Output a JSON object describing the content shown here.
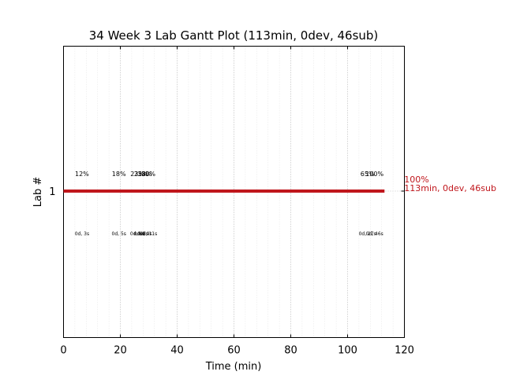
{
  "chart_data": {
    "type": "gantt",
    "title": "34 Week 3 Lab Gantt Plot (113min, 0dev, 46sub)",
    "xlabel": "Time (min)",
    "ylabel": "Lab #",
    "xlim": [
      0,
      120
    ],
    "xticks": [
      0,
      20,
      40,
      60,
      80,
      100,
      120
    ],
    "xtick_labels": [
      "0",
      "20",
      "40",
      "60",
      "80",
      "100",
      "120"
    ],
    "major_grid": true,
    "minor_grid": true,
    "rows": [
      {
        "lab": "1",
        "start": 0,
        "end": 113,
        "color": "#c0161c",
        "end_label_pct": "100%",
        "end_label_detail": "113min, 0dev, 46sub",
        "annotations": [
          {
            "x": 6.5,
            "top": "12%",
            "bottom": "0d, 3s"
          },
          {
            "x": 19.5,
            "top": "18%",
            "bottom": "0d, 5s"
          },
          {
            "x": 26,
            "top": "23%",
            "bottom": "0d, 6s"
          },
          {
            "x": 27.3,
            "top": "25%",
            "bottom": "0d, 8s"
          },
          {
            "x": 28.6,
            "top": "28%",
            "bottom": "0d, 9s"
          },
          {
            "x": 29.9,
            "top": "30%",
            "bottom": "0d, 11s"
          },
          {
            "x": 107,
            "top": "65%",
            "bottom": "0d, 27s"
          },
          {
            "x": 109.5,
            "top": "100%",
            "bottom": "0d, 46s"
          }
        ]
      }
    ]
  }
}
